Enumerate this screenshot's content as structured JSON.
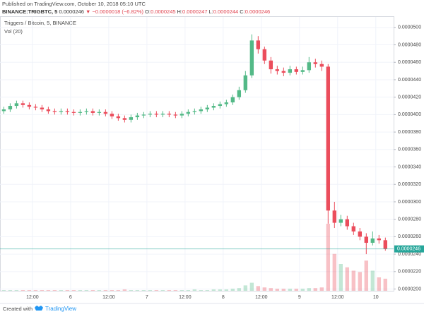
{
  "header": {
    "published": "Published on TradingView.com, October 10, 2018 05:10 UTC",
    "symbol": "BINANCE:TRIGBTC, 5",
    "last": "0.0000246",
    "change": "▼ −0.0000018 (−6.82%)",
    "ohlc": [
      {
        "key": "O:",
        "value": "0.0000245"
      },
      {
        "key": "H:",
        "value": "0.0000247"
      },
      {
        "key": "L:",
        "value": "0.0000244"
      },
      {
        "key": "C:",
        "value": "0.0000246"
      }
    ]
  },
  "chart_data": {
    "type": "candlestick",
    "title": "Triggers / Bitcoin, 5, BINANCE",
    "volume_title": "Vol (20)",
    "x": [
      -21,
      -19,
      -17,
      -15,
      -13,
      -11,
      -9,
      -7,
      -5,
      -3,
      -1,
      1,
      3,
      5,
      7,
      9,
      11,
      13,
      15,
      17,
      19,
      21,
      23,
      25,
      27,
      29,
      31,
      33,
      35,
      37,
      39,
      41,
      43,
      45,
      47,
      49,
      51,
      53,
      55,
      57,
      59,
      61,
      63,
      65,
      67,
      69,
      71,
      73,
      75,
      77,
      79,
      81,
      83,
      85,
      87,
      89,
      91,
      93,
      95,
      97,
      99
    ],
    "open": [
      4.04e-05,
      4.06e-05,
      4.1e-05,
      4.13e-05,
      4.11e-05,
      4.09e-05,
      4.08e-05,
      4.06e-05,
      4.04e-05,
      4.03e-05,
      4.04e-05,
      4.03e-05,
      4.02e-05,
      4.03e-05,
      4.04e-05,
      4.02e-05,
      4.03e-05,
      4.01e-05,
      3.98e-05,
      3.96e-05,
      3.94e-05,
      3.97e-05,
      3.99e-05,
      4e-05,
      4.01e-05,
      4e-05,
      4.01e-05,
      4e-05,
      3.99e-05,
      4.01e-05,
      4.03e-05,
      4.04e-05,
      4.06e-05,
      4.08e-05,
      4.1e-05,
      4.12e-05,
      4.14e-05,
      4.2e-05,
      4.28e-05,
      4.45e-05,
      4.85e-05,
      4.75e-05,
      4.62e-05,
      4.52e-05,
      4.5e-05,
      4.48e-05,
      4.52e-05,
      4.49e-05,
      4.51e-05,
      4.6e-05,
      4.58e-05,
      4.55e-05,
      2.9e-05,
      2.76e-05,
      2.8e-05,
      2.72e-05,
      2.66e-05,
      2.6e-05,
      2.53e-05,
      2.58e-05,
      2.56e-05
    ],
    "high": [
      4.09e-05,
      4.13e-05,
      4.16e-05,
      4.16e-05,
      4.14e-05,
      4.12e-05,
      4.11e-05,
      4.09e-05,
      4.07e-05,
      4.07e-05,
      4.07e-05,
      4.06e-05,
      4.06e-05,
      4.07e-05,
      4.07e-05,
      4.06e-05,
      4.06e-05,
      4.04e-05,
      4.01e-05,
      3.99e-05,
      4e-05,
      4.02e-05,
      4.03e-05,
      4.04e-05,
      4.04e-05,
      4.04e-05,
      4.04e-05,
      4.03e-05,
      4.04e-05,
      4.06e-05,
      4.07e-05,
      4.09e-05,
      4.11e-05,
      4.13e-05,
      4.15e-05,
      4.17e-05,
      4.23e-05,
      4.32e-05,
      4.5e-05,
      4.92e-05,
      4.9e-05,
      4.78e-05,
      4.66e-05,
      4.56e-05,
      4.54e-05,
      4.56e-05,
      4.55e-05,
      4.55e-05,
      4.66e-05,
      4.64e-05,
      4.62e-05,
      4.58e-05,
      3e-05,
      2.85e-05,
      2.84e-05,
      2.76e-05,
      2.7e-05,
      2.64e-05,
      2.66e-05,
      2.62e-05,
      2.59e-05
    ],
    "low": [
      4.01e-05,
      4.03e-05,
      4.07e-05,
      4.08e-05,
      4.06e-05,
      4.05e-05,
      4.03e-05,
      4.01e-05,
      4e-05,
      4e-05,
      4e-05,
      3.99e-05,
      3.99e-05,
      4e-05,
      3.99e-05,
      3.99e-05,
      3.98e-05,
      3.95e-05,
      3.93e-05,
      3.91e-05,
      3.91e-05,
      3.94e-05,
      3.96e-05,
      3.97e-05,
      3.97e-05,
      3.97e-05,
      3.97e-05,
      3.96e-05,
      3.96e-05,
      3.98e-05,
      4e-05,
      4.01e-05,
      4.03e-05,
      4.05e-05,
      4.07e-05,
      4.09e-05,
      4.11e-05,
      4.17e-05,
      4.25e-05,
      4.42e-05,
      4.7e-05,
      4.58e-05,
      4.47e-05,
      4.46e-05,
      4.44e-05,
      4.45e-05,
      4.46e-05,
      4.46e-05,
      4.48e-05,
      4.54e-05,
      4.5e-05,
      2.75e-05,
      2.7e-05,
      2.72e-05,
      2.68e-05,
      2.62e-05,
      2.56e-05,
      2.4e-05,
      2.5e-05,
      2.52e-05,
      2.44e-05
    ],
    "close": [
      4.06e-05,
      4.1e-05,
      4.13e-05,
      4.11e-05,
      4.09e-05,
      4.08e-05,
      4.06e-05,
      4.04e-05,
      4.03e-05,
      4.04e-05,
      4.03e-05,
      4.02e-05,
      4.03e-05,
      4.04e-05,
      4.02e-05,
      4.03e-05,
      4.01e-05,
      3.98e-05,
      3.96e-05,
      3.94e-05,
      3.97e-05,
      3.99e-05,
      4e-05,
      4.01e-05,
      4e-05,
      4.01e-05,
      4e-05,
      3.99e-05,
      4.01e-05,
      4.03e-05,
      4.04e-05,
      4.06e-05,
      4.08e-05,
      4.1e-05,
      4.12e-05,
      4.14e-05,
      4.2e-05,
      4.28e-05,
      4.45e-05,
      4.85e-05,
      4.75e-05,
      4.62e-05,
      4.52e-05,
      4.5e-05,
      4.48e-05,
      4.52e-05,
      4.49e-05,
      4.51e-05,
      4.6e-05,
      4.58e-05,
      4.55e-05,
      2.9e-05,
      2.76e-05,
      2.8e-05,
      2.72e-05,
      2.66e-05,
      2.6e-05,
      2.53e-05,
      2.58e-05,
      2.56e-05,
      2.46e-05
    ],
    "volume": [
      1,
      1,
      1,
      1,
      1,
      1,
      1,
      1,
      1,
      1,
      1,
      1,
      1,
      1,
      1,
      1,
      1,
      1,
      1,
      2,
      1,
      1,
      1,
      1,
      1,
      1,
      1,
      1,
      1,
      1,
      2,
      1,
      1,
      2,
      2,
      2,
      3,
      4,
      8,
      12,
      7,
      5,
      4,
      3,
      3,
      3,
      3,
      3,
      4,
      4,
      5,
      100,
      55,
      40,
      35,
      30,
      28,
      45,
      30,
      20,
      18
    ],
    "up_color": "#53b987",
    "down_color": "#eb4d5c",
    "xlim": [
      -22.2,
      101.6
    ],
    "xticks": [
      {
        "value": -12,
        "label": "12:00"
      },
      {
        "value": 0,
        "label": "6"
      },
      {
        "value": 12,
        "label": "12:00"
      },
      {
        "value": 24,
        "label": "7"
      },
      {
        "value": 36,
        "label": "12:00"
      },
      {
        "value": 48,
        "label": "8"
      },
      {
        "value": 60,
        "label": "12:00"
      },
      {
        "value": 72,
        "label": "9"
      },
      {
        "value": 84,
        "label": "12:00"
      },
      {
        "value": 96,
        "label": "10"
      }
    ],
    "ylim": [
      1.98e-05,
      5.12e-05
    ],
    "yticks": [
      {
        "value": 2e-05,
        "label": "0.0000200"
      },
      {
        "value": 2.2e-05,
        "label": "0.0000220"
      },
      {
        "value": 2.4e-05,
        "label": "0.0000240"
      },
      {
        "value": 2.6e-05,
        "label": "0.0000260"
      },
      {
        "value": 2.8e-05,
        "label": "0.0000280"
      },
      {
        "value": 3e-05,
        "label": "0.0000300"
      },
      {
        "value": 3.2e-05,
        "label": "0.0000320"
      },
      {
        "value": 3.4e-05,
        "label": "0.0000340"
      },
      {
        "value": 3.6e-05,
        "label": "0.0000360"
      },
      {
        "value": 3.8e-05,
        "label": "0.0000380"
      },
      {
        "value": 4e-05,
        "label": "0.0000400"
      },
      {
        "value": 4.2e-05,
        "label": "0.0000420"
      },
      {
        "value": 4.4e-05,
        "label": "0.0000440"
      },
      {
        "value": 4.6e-05,
        "label": "0.0000460"
      },
      {
        "value": 4.8e-05,
        "label": "0.0000480"
      },
      {
        "value": 5e-05,
        "label": "0.0000500"
      }
    ],
    "last_price": {
      "value": 2.46e-05,
      "label": "0.0000246"
    },
    "last_color": "#26a69a",
    "grid": true
  },
  "footer": {
    "created": "Created with",
    "brand": "TradingView"
  }
}
